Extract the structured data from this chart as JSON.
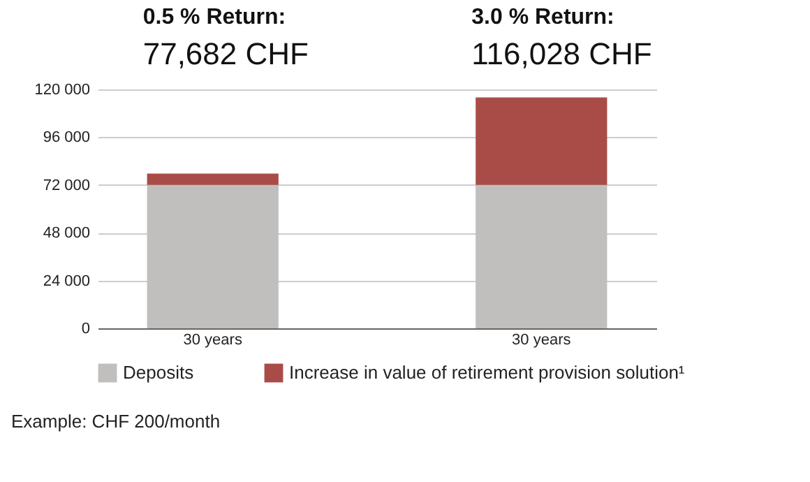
{
  "chart_data": {
    "type": "bar",
    "stacked": true,
    "categories": [
      "30 years",
      "30 years"
    ],
    "series": [
      {
        "name": "Deposits",
        "color": "#c0bfbe",
        "values": [
          72000,
          72000
        ]
      },
      {
        "name": "Increase in value of retirement provision solution¹",
        "color": "#a94c47",
        "values": [
          5700,
          44000
        ]
      }
    ],
    "ylim": [
      0,
      120000
    ],
    "yticks": [
      {
        "value": 0,
        "label": "0"
      },
      {
        "value": 24000,
        "label": "24 000"
      },
      {
        "value": 48000,
        "label": "48 000"
      },
      {
        "value": 72000,
        "label": "72 000"
      },
      {
        "value": 96000,
        "label": "96 000"
      },
      {
        "value": 120000,
        "label": "120 000"
      }
    ],
    "grid": "y",
    "legend": "bottom",
    "annotations": [
      "0.5 % Return:",
      "77,682 CHF",
      "3.0 % Return:",
      "116,028 CHF",
      "Example: CHF 200/month"
    ]
  }
}
